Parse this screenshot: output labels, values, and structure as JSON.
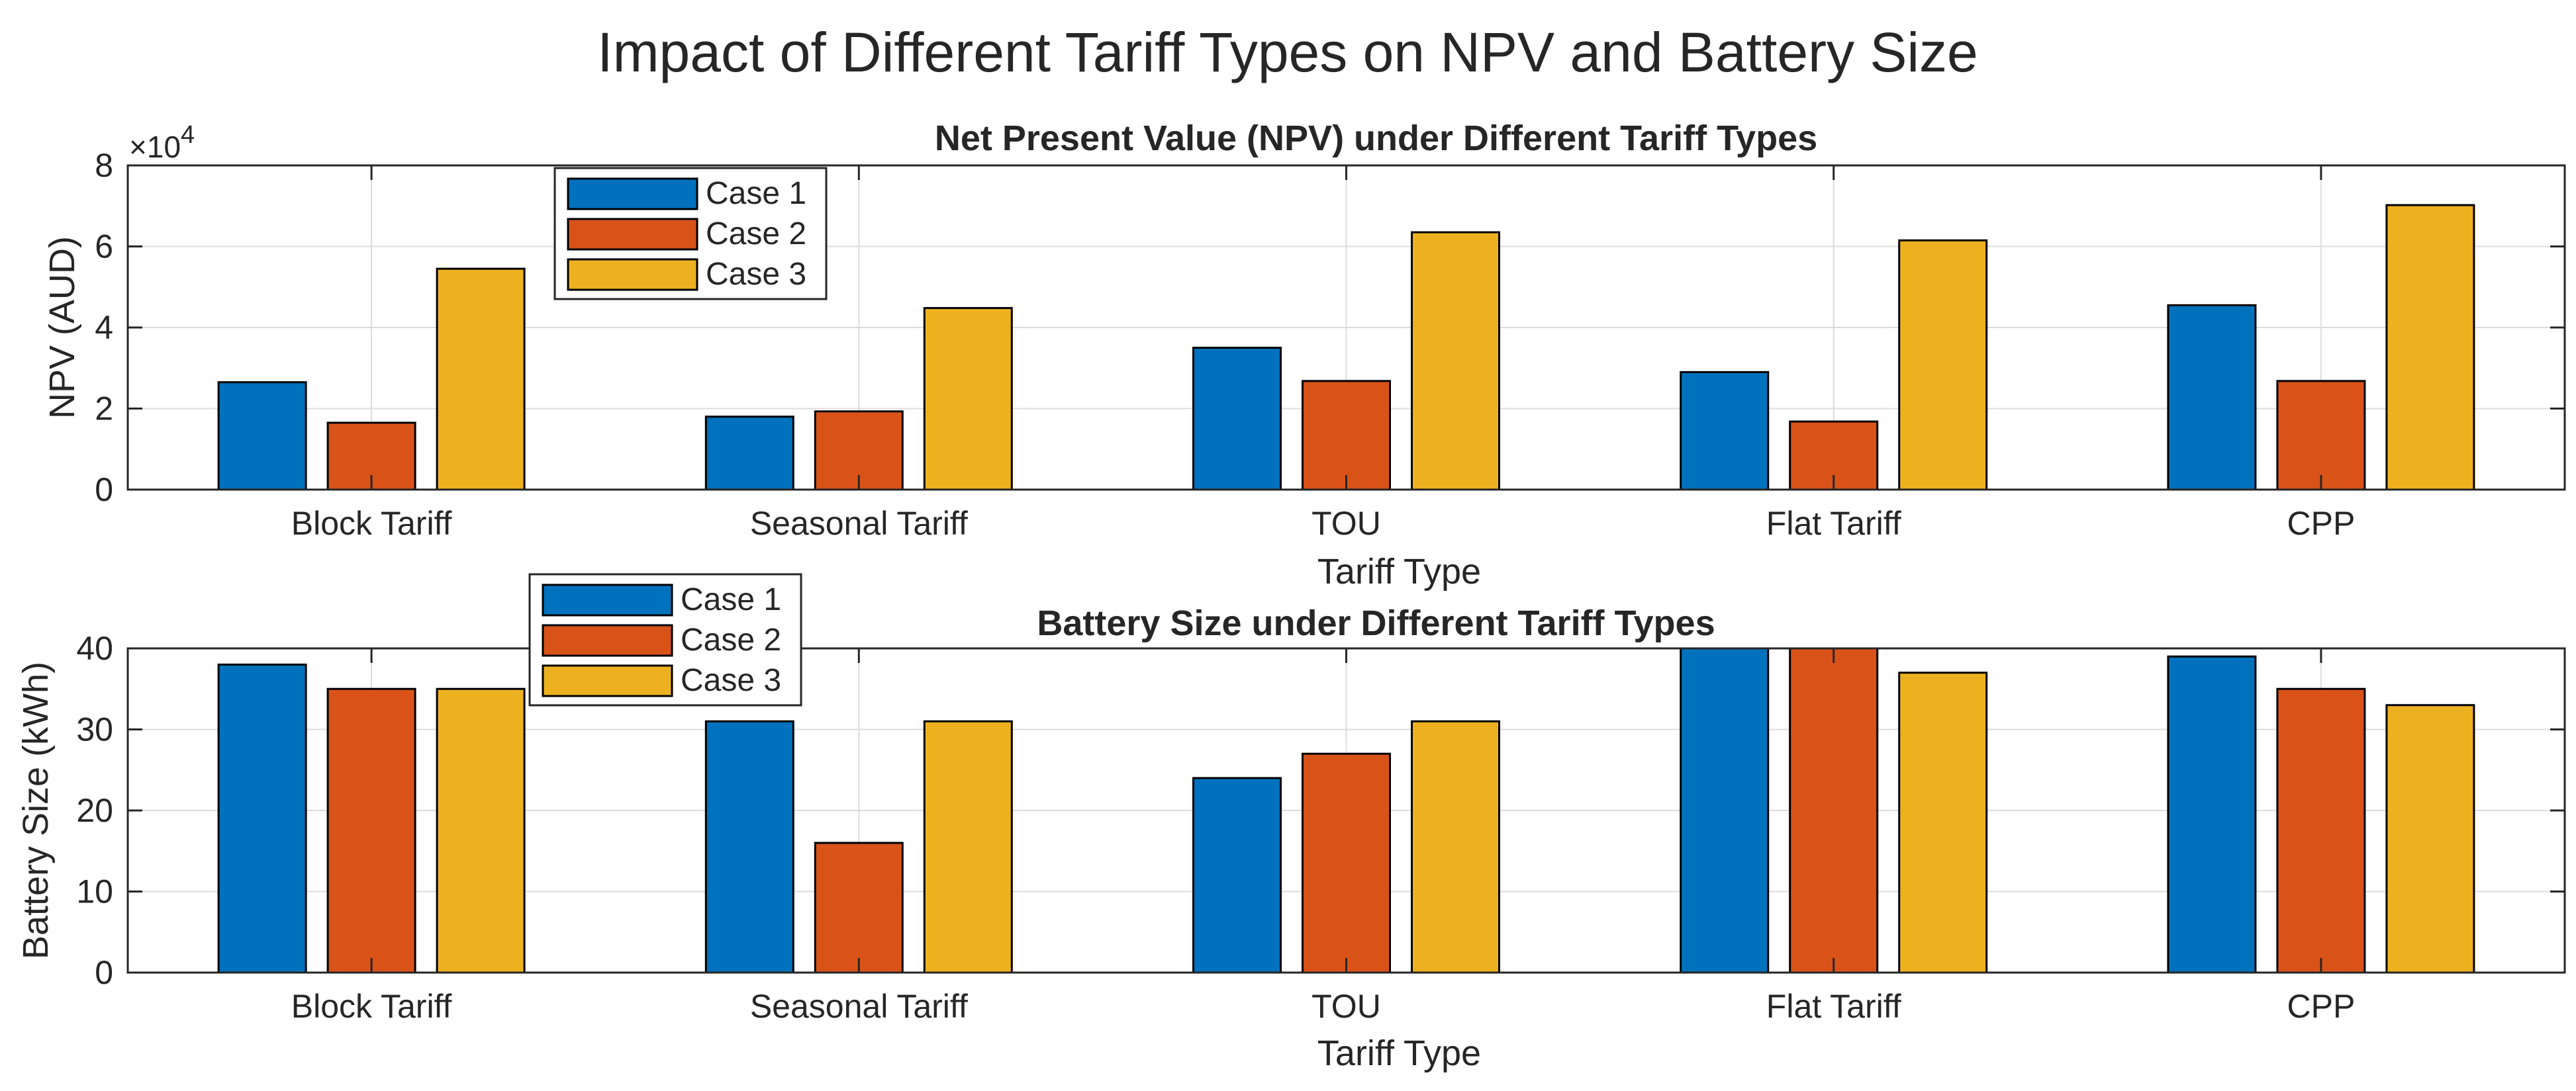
{
  "figure": {
    "title": "Impact of Different Tariff Types on NPV and Battery Size"
  },
  "chart_data": [
    {
      "type": "bar",
      "title": "Net Present Value (NPV) under Different Tariff Types",
      "xlabel": "Tariff Type",
      "ylabel": "NPV (AUD)",
      "exponent_base": "×10",
      "exponent_power": "4",
      "categories": [
        "Block Tariff",
        "Seasonal Tariff",
        "TOU",
        "Flat Tariff",
        "CPP"
      ],
      "ylim": [
        0,
        80000
      ],
      "yticks": [
        0,
        20000,
        40000,
        60000,
        80000
      ],
      "ytick_labels": [
        "0",
        "2",
        "4",
        "6",
        "8"
      ],
      "grid": true,
      "legend_position": "top-left",
      "series": [
        {
          "name": "Case 1",
          "color": "#0072BD",
          "values": [
            26500,
            18000,
            35000,
            29000,
            45500
          ]
        },
        {
          "name": "Case 2",
          "color": "#D95319",
          "values": [
            16500,
            19300,
            26800,
            16800,
            26800
          ]
        },
        {
          "name": "Case 3",
          "color": "#EDB120",
          "values": [
            54500,
            44800,
            63500,
            61500,
            70200
          ]
        }
      ]
    },
    {
      "type": "bar",
      "title": "Battery Size under Different Tariff Types",
      "xlabel": "Tariff Type",
      "ylabel": "Battery Size (kWh)",
      "categories": [
        "Block Tariff",
        "Seasonal Tariff",
        "TOU",
        "Flat Tariff",
        "CPP"
      ],
      "ylim": [
        0,
        40
      ],
      "yticks": [
        0,
        10,
        20,
        30,
        40
      ],
      "ytick_labels": [
        "0",
        "10",
        "20",
        "30",
        "40"
      ],
      "grid": true,
      "legend_position": "top-left",
      "series": [
        {
          "name": "Case 1",
          "color": "#0072BD",
          "values": [
            38,
            31,
            24,
            40,
            39
          ]
        },
        {
          "name": "Case 2",
          "color": "#D95319",
          "values": [
            35,
            16,
            27,
            40,
            35
          ]
        },
        {
          "name": "Case 3",
          "color": "#EDB120",
          "values": [
            35,
            31,
            31,
            37,
            33
          ]
        }
      ]
    }
  ]
}
